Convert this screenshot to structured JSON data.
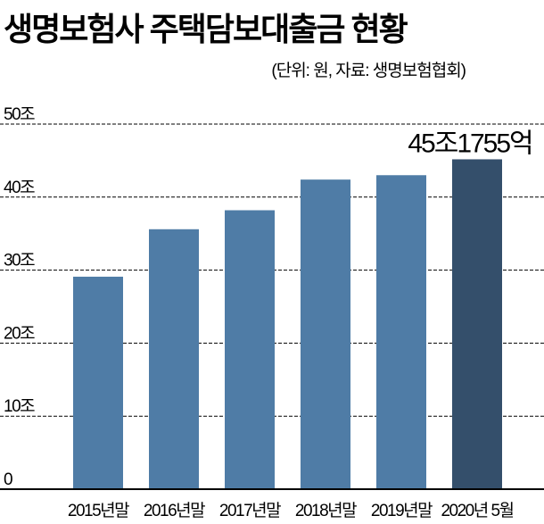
{
  "chart_data": {
    "type": "bar",
    "title": "생명보험사 주택담보대출금 현황",
    "subtitle": "(단위: 원, 자료: 생명보험협회)",
    "categories": [
      "2015년말",
      "2016년말",
      "2017년말",
      "2018년말",
      "2019년말",
      "2020년 5월"
    ],
    "values": [
      29.1,
      35.6,
      38.2,
      42.4,
      43.0,
      45.1755
    ],
    "unit": "조 원",
    "ylim": [
      0,
      50
    ],
    "yticks": [
      0,
      10,
      20,
      30,
      40,
      50
    ],
    "ytick_labels": [
      "0",
      "10조",
      "20조",
      "30조",
      "40조",
      "50조"
    ],
    "grid": true,
    "annotation": {
      "category": "2020년 5월",
      "text": "45조1755억"
    },
    "colors": {
      "bar": "#4f7ca6",
      "highlight": "#344f6b",
      "text": "#000000"
    },
    "highlight_index": 5
  }
}
